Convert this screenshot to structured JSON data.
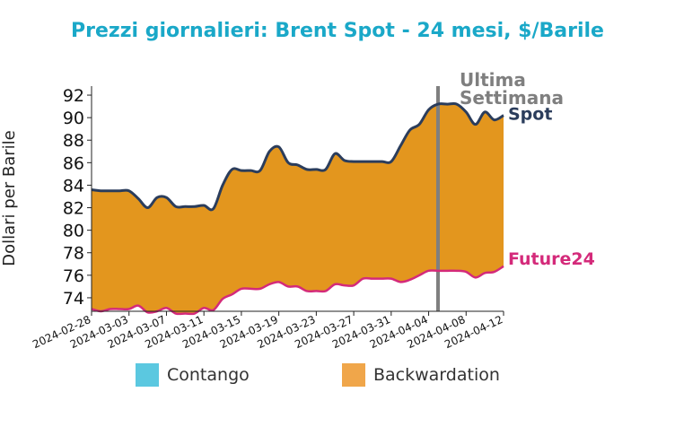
{
  "colors": {
    "title": "#1aa8c8",
    "spot": "#2b3d5c",
    "future": "#d42a7a",
    "backwardation_fill": "#e3961e",
    "contango_legend": "#5bc8e0",
    "backwardation_legend": "#f0a64a",
    "week_marker": "#7f7f7f",
    "axis": "#222222"
  },
  "chart_data": {
    "type": "area",
    "title": "Prezzi giornalieri: Brent Spot - 24 mesi, $/Barile",
    "ylabel": "Dollari per Barile",
    "xlabel": "",
    "ylim": [
      72.8,
      92.8
    ],
    "yticks": [
      74,
      76,
      78,
      80,
      82,
      84,
      86,
      88,
      90,
      92
    ],
    "xlim": [
      "2024-02-28",
      "2024-04-12"
    ],
    "xticks": [
      "2024-02-28",
      "2024-03-03",
      "2024-03-07",
      "2024-03-11",
      "2024-03-15",
      "2024-03-19",
      "2024-03-23",
      "2024-03-27",
      "2024-03-31",
      "2024-04-04",
      "2024-04-08",
      "2024-04-12"
    ],
    "series": [
      {
        "name": "Spot",
        "points": [
          [
            "2024-02-28",
            83.6
          ],
          [
            "2024-02-29",
            83.5
          ],
          [
            "2024-03-01",
            83.5
          ],
          [
            "2024-03-02",
            83.5
          ],
          [
            "2024-03-03",
            83.5
          ],
          [
            "2024-03-04",
            82.8
          ],
          [
            "2024-03-05",
            82.0
          ],
          [
            "2024-03-06",
            82.9
          ],
          [
            "2024-03-07",
            82.9
          ],
          [
            "2024-03-08",
            82.1
          ],
          [
            "2024-03-09",
            82.1
          ],
          [
            "2024-03-10",
            82.1
          ],
          [
            "2024-03-11",
            82.2
          ],
          [
            "2024-03-12",
            81.9
          ],
          [
            "2024-03-13",
            84.0
          ],
          [
            "2024-03-14",
            85.4
          ],
          [
            "2024-03-15",
            85.3
          ],
          [
            "2024-03-16",
            85.3
          ],
          [
            "2024-03-17",
            85.3
          ],
          [
            "2024-03-18",
            87.0
          ],
          [
            "2024-03-19",
            87.4
          ],
          [
            "2024-03-20",
            86.0
          ],
          [
            "2024-03-21",
            85.8
          ],
          [
            "2024-03-22",
            85.4
          ],
          [
            "2024-03-23",
            85.4
          ],
          [
            "2024-03-24",
            85.4
          ],
          [
            "2024-03-25",
            86.8
          ],
          [
            "2024-03-26",
            86.2
          ],
          [
            "2024-03-27",
            86.1
          ],
          [
            "2024-03-28",
            86.1
          ],
          [
            "2024-03-29",
            86.1
          ],
          [
            "2024-03-30",
            86.1
          ],
          [
            "2024-03-31",
            86.1
          ],
          [
            "2024-04-01",
            87.5
          ],
          [
            "2024-04-02",
            88.9
          ],
          [
            "2024-04-03",
            89.4
          ],
          [
            "2024-04-04",
            90.7
          ],
          [
            "2024-04-05",
            91.2
          ],
          [
            "2024-04-06",
            91.2
          ],
          [
            "2024-04-07",
            91.2
          ],
          [
            "2024-04-08",
            90.5
          ],
          [
            "2024-04-09",
            89.4
          ],
          [
            "2024-04-10",
            90.5
          ],
          [
            "2024-04-11",
            89.8
          ],
          [
            "2024-04-12",
            90.2
          ]
        ]
      },
      {
        "name": "Future24",
        "points": [
          [
            "2024-02-28",
            73.0
          ],
          [
            "2024-02-29",
            72.8
          ],
          [
            "2024-03-01",
            73.0
          ],
          [
            "2024-03-02",
            73.0
          ],
          [
            "2024-03-03",
            73.0
          ],
          [
            "2024-03-04",
            73.3
          ],
          [
            "2024-03-05",
            72.7
          ],
          [
            "2024-03-06",
            72.8
          ],
          [
            "2024-03-07",
            73.1
          ],
          [
            "2024-03-08",
            72.6
          ],
          [
            "2024-03-09",
            72.6
          ],
          [
            "2024-03-10",
            72.6
          ],
          [
            "2024-03-11",
            73.1
          ],
          [
            "2024-03-12",
            72.9
          ],
          [
            "2024-03-13",
            73.9
          ],
          [
            "2024-03-14",
            74.3
          ],
          [
            "2024-03-15",
            74.8
          ],
          [
            "2024-03-16",
            74.8
          ],
          [
            "2024-03-17",
            74.8
          ],
          [
            "2024-03-18",
            75.2
          ],
          [
            "2024-03-19",
            75.4
          ],
          [
            "2024-03-20",
            75.0
          ],
          [
            "2024-03-21",
            75.0
          ],
          [
            "2024-03-22",
            74.6
          ],
          [
            "2024-03-23",
            74.6
          ],
          [
            "2024-03-24",
            74.6
          ],
          [
            "2024-03-25",
            75.2
          ],
          [
            "2024-03-26",
            75.1
          ],
          [
            "2024-03-27",
            75.1
          ],
          [
            "2024-03-28",
            75.7
          ],
          [
            "2024-03-29",
            75.7
          ],
          [
            "2024-03-30",
            75.7
          ],
          [
            "2024-03-31",
            75.7
          ],
          [
            "2024-04-01",
            75.4
          ],
          [
            "2024-04-02",
            75.6
          ],
          [
            "2024-04-03",
            76.0
          ],
          [
            "2024-04-04",
            76.4
          ],
          [
            "2024-04-05",
            76.4
          ],
          [
            "2024-04-06",
            76.4
          ],
          [
            "2024-04-07",
            76.4
          ],
          [
            "2024-04-08",
            76.3
          ],
          [
            "2024-04-09",
            75.8
          ],
          [
            "2024-04-10",
            76.2
          ],
          [
            "2024-04-11",
            76.3
          ],
          [
            "2024-04-12",
            76.8
          ]
        ]
      }
    ],
    "annotations": {
      "week_marker_date": "2024-04-05",
      "week_marker_label": [
        "Ultima",
        "Settimana"
      ],
      "spot_label": "Spot",
      "future_label": "Future24"
    },
    "legend": {
      "placement": "bottom",
      "items": [
        {
          "label": "Contango",
          "color": "#5bc8e0"
        },
        {
          "label": "Backwardation",
          "color": "#f0a64a"
        }
      ]
    }
  }
}
